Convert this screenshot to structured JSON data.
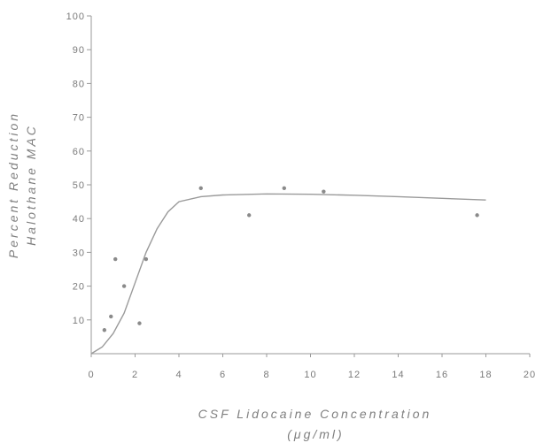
{
  "chart_data": {
    "type": "scatter",
    "title": "",
    "xlabel": "CSF Lidocaine Concentration",
    "xlabel_units": "(μg/ml)",
    "ylabel_line1": "Percent Reduction",
    "ylabel_line2": "Halothane MAC",
    "xlim": [
      0,
      20
    ],
    "ylim": [
      0,
      100
    ],
    "x_ticks": [
      0,
      2,
      4,
      6,
      8,
      10,
      12,
      14,
      16,
      18,
      20
    ],
    "y_ticks": [
      10,
      20,
      30,
      40,
      50,
      60,
      70,
      80,
      90,
      100
    ],
    "grid": false,
    "series": [
      {
        "kind": "points",
        "points": [
          {
            "x": 0.6,
            "y": 7
          },
          {
            "x": 0.9,
            "y": 11
          },
          {
            "x": 1.1,
            "y": 28
          },
          {
            "x": 1.5,
            "y": 20
          },
          {
            "x": 2.2,
            "y": 9
          },
          {
            "x": 2.5,
            "y": 28
          },
          {
            "x": 5.0,
            "y": 49
          },
          {
            "x": 7.2,
            "y": 41
          },
          {
            "x": 8.8,
            "y": 49
          },
          {
            "x": 10.6,
            "y": 48
          },
          {
            "x": 17.6,
            "y": 41
          }
        ]
      },
      {
        "kind": "fitted-curve",
        "points": [
          {
            "x": 0.0,
            "y": 0
          },
          {
            "x": 0.5,
            "y": 2
          },
          {
            "x": 1.0,
            "y": 6
          },
          {
            "x": 1.5,
            "y": 12
          },
          {
            "x": 2.0,
            "y": 21
          },
          {
            "x": 2.5,
            "y": 30
          },
          {
            "x": 3.0,
            "y": 37
          },
          {
            "x": 3.5,
            "y": 42
          },
          {
            "x": 4.0,
            "y": 45
          },
          {
            "x": 5.0,
            "y": 46.5
          },
          {
            "x": 6.0,
            "y": 47
          },
          {
            "x": 8.0,
            "y": 47.3
          },
          {
            "x": 10.0,
            "y": 47.2
          },
          {
            "x": 12.0,
            "y": 46.9
          },
          {
            "x": 14.0,
            "y": 46.5
          },
          {
            "x": 16.0,
            "y": 46.0
          },
          {
            "x": 18.0,
            "y": 45.5
          }
        ]
      }
    ]
  }
}
